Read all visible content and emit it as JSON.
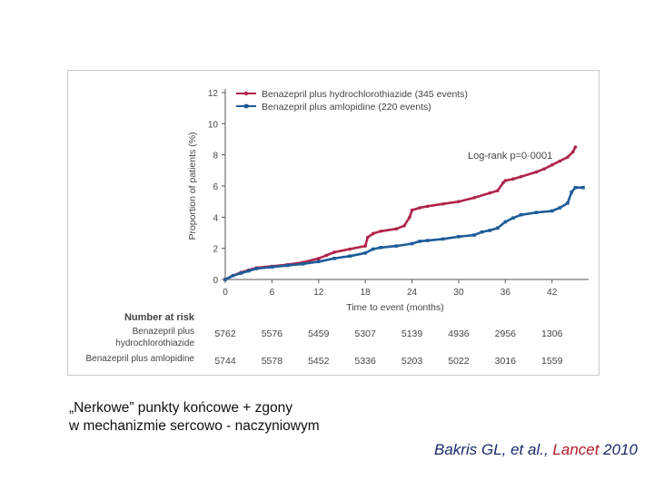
{
  "chart_data": {
    "type": "line",
    "xlabel": "Time to event (months)",
    "ylabel": "Proportion of patients (%)",
    "xlim": [
      0,
      46
    ],
    "ylim": [
      0,
      12
    ],
    "xticks": [
      0,
      6,
      12,
      18,
      24,
      30,
      36,
      42
    ],
    "yticks": [
      0,
      2,
      4,
      6,
      8,
      10,
      12
    ],
    "annotation": "Log-rank p=0·0001",
    "legend_position": "top-left",
    "grid": false,
    "series": [
      {
        "name": "Benazepril plus hydrochlorothiazide (345 events)",
        "color": "#b0244a",
        "marker": "circle",
        "x": [
          0,
          1,
          2,
          3,
          4,
          6,
          8,
          10,
          12,
          13,
          14,
          16,
          18,
          18.3,
          19,
          20,
          22,
          23,
          23.7,
          24,
          25,
          26,
          28,
          30,
          32,
          34,
          35,
          35.7,
          36,
          37,
          38,
          40,
          41,
          42,
          43,
          44,
          44.7,
          45
        ],
        "values": [
          0,
          0.25,
          0.45,
          0.6,
          0.75,
          0.85,
          0.95,
          1.1,
          1.35,
          1.55,
          1.75,
          1.95,
          2.15,
          2.7,
          2.95,
          3.1,
          3.25,
          3.45,
          4.0,
          4.45,
          4.6,
          4.7,
          4.85,
          5.0,
          5.25,
          5.55,
          5.7,
          6.2,
          6.35,
          6.45,
          6.6,
          6.9,
          7.1,
          7.35,
          7.6,
          7.85,
          8.2,
          8.5
        ]
      },
      {
        "name": "Benazepril plus amlopidine (220 events)",
        "color": "#1f5c99",
        "marker": "square",
        "x": [
          0,
          1,
          2,
          3,
          4,
          6,
          8,
          10,
          12,
          14,
          16,
          18,
          19,
          20,
          22,
          24,
          25,
          26,
          28,
          30,
          32,
          33,
          34,
          35,
          36,
          37,
          38,
          40,
          42,
          43,
          44,
          44.5,
          45,
          46
        ],
        "values": [
          0,
          0.25,
          0.4,
          0.55,
          0.7,
          0.8,
          0.9,
          1.0,
          1.15,
          1.35,
          1.5,
          1.7,
          1.95,
          2.05,
          2.15,
          2.3,
          2.45,
          2.5,
          2.6,
          2.75,
          2.85,
          3.05,
          3.15,
          3.3,
          3.7,
          3.95,
          4.15,
          4.3,
          4.4,
          4.6,
          4.9,
          5.6,
          5.9,
          5.9
        ]
      }
    ],
    "risk_table": {
      "title": "Number at risk",
      "rows": [
        {
          "label_line1": "Benazepril plus",
          "label_line2": "hydrochlorothiazide",
          "values": [
            "5762",
            "5576",
            "5459",
            "5307",
            "5139",
            "4936",
            "2956",
            "1306"
          ]
        },
        {
          "label_line1": "Benazepril plus amlopidine",
          "label_line2": "",
          "values": [
            "5744",
            "5578",
            "5452",
            "5336",
            "5203",
            "5022",
            "3016",
            "1559"
          ]
        }
      ]
    }
  },
  "caption": {
    "line1": "„Nerkowe” punkty końcowe + zgony",
    "line2": "w mechanizmie sercowo - naczyniowym"
  },
  "citation": {
    "authors": "Bakris GL, et al., ",
    "journal": "Lancet",
    "year": " 2010"
  }
}
